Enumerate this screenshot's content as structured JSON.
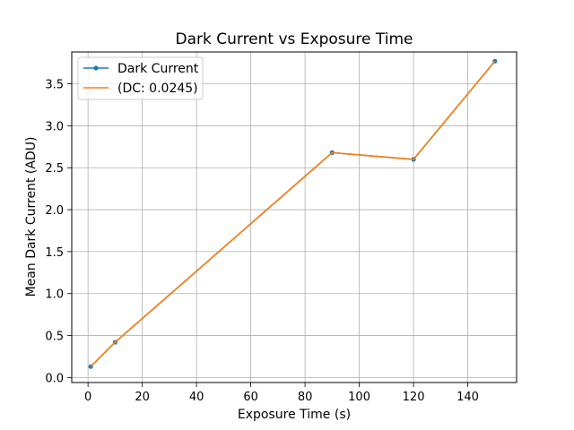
{
  "chart_data": {
    "type": "line",
    "title": "Dark Current vs Exposure Time",
    "xlabel": "Exposure Time (s)",
    "ylabel": "Mean Dark Current (ADU)",
    "xlim": [
      -6,
      158
    ],
    "ylim": [
      -0.06,
      3.88
    ],
    "xticks": [
      0,
      20,
      40,
      60,
      80,
      100,
      120,
      140
    ],
    "yticks": [
      0.0,
      0.5,
      1.0,
      1.5,
      2.0,
      2.5,
      3.0,
      3.5
    ],
    "xtick_labels": [
      "0",
      "20",
      "40",
      "60",
      "80",
      "100",
      "120",
      "140"
    ],
    "ytick_labels": [
      "0.0",
      "0.5",
      "1.0",
      "1.5",
      "2.0",
      "2.5",
      "3.0",
      "3.5"
    ],
    "grid": true,
    "legend_position": "upper-left",
    "series": [
      {
        "name": "Dark Current",
        "color": "#1f77b4",
        "marker": "circle",
        "x": [
          1,
          10,
          90,
          120,
          150
        ],
        "y": [
          0.13,
          0.42,
          2.68,
          2.6,
          3.77
        ]
      },
      {
        "name": "(DC: 0.0245)",
        "color": "#ff7f0e",
        "marker": "none",
        "x": [
          1,
          10,
          90,
          120,
          150
        ],
        "y": [
          0.13,
          0.42,
          2.68,
          2.6,
          3.77
        ]
      }
    ]
  }
}
